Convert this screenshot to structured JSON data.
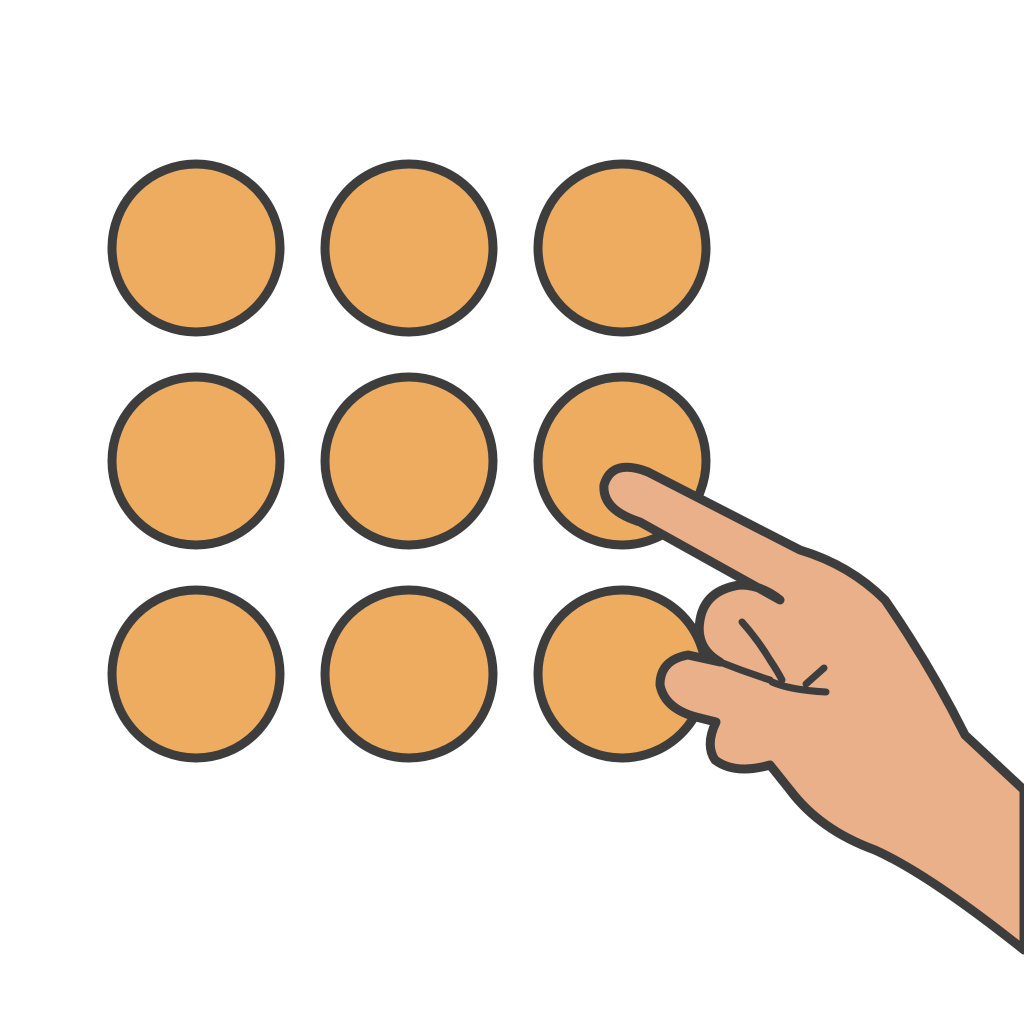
{
  "pattern_lock": {
    "rows": 3,
    "columns": 3,
    "dots": [
      {
        "row": 1,
        "col": 1
      },
      {
        "row": 1,
        "col": 2
      },
      {
        "row": 1,
        "col": 3
      },
      {
        "row": 2,
        "col": 1
      },
      {
        "row": 2,
        "col": 2
      },
      {
        "row": 2,
        "col": 3
      },
      {
        "row": 3,
        "col": 1
      },
      {
        "row": 3,
        "col": 2
      },
      {
        "row": 3,
        "col": 3
      }
    ],
    "touched_dot": {
      "row": 2,
      "col": 3
    }
  },
  "hand": {
    "icon": "pointing-hand-icon"
  },
  "colors": {
    "background": "#ffffff",
    "dot_fill": "#EEAC60",
    "outline": "#3d3d3d",
    "skin": "#EAB08A"
  }
}
